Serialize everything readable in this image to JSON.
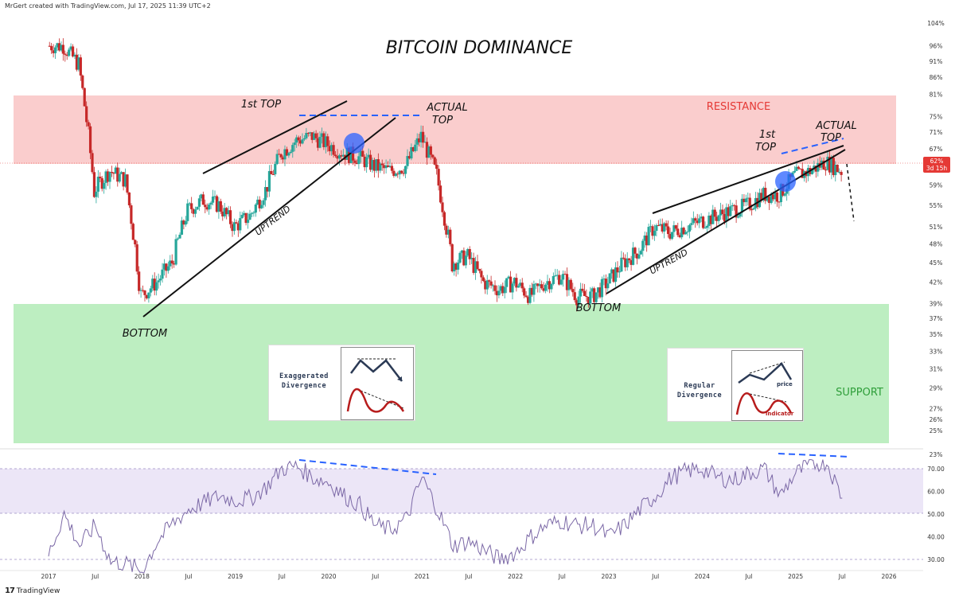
{
  "header": {
    "text": "MrGert created with TradingView.com, Jul 17, 2025 11:39 UTC+2"
  },
  "footer": {
    "logo": "17",
    "brand": "TradingView"
  },
  "colors": {
    "up": "#26a69a",
    "down": "#c62828",
    "resistance_zone": "#f9c4c4",
    "support_zone": "#b2ebb6",
    "rsi_line": "#7b68a6",
    "rsi_band": "#ece6f7",
    "marker": "#2962ff",
    "price_tag": "#e53935"
  },
  "chart_data": [
    {
      "type": "candlestick",
      "title": "BITCOIN DOMINANCE",
      "x_tick_labels": [
        "2017",
        "Jul",
        "2018",
        "Jul",
        "2019",
        "Jul",
        "2020",
        "Jul",
        "2021",
        "Jul",
        "2022",
        "Jul",
        "2023",
        "Jul",
        "2024",
        "Jul",
        "2025",
        "Jul",
        "2026"
      ],
      "y_tick_labels": [
        "104%",
        "96%",
        "91%",
        "86%",
        "81%",
        "75%",
        "71%",
        "67%",
        "59%",
        "55%",
        "51%",
        "48%",
        "45%",
        "42%",
        "39%",
        "37%",
        "35%",
        "33%",
        "31%",
        "29%",
        "27%",
        "26%",
        "25%",
        "23%"
      ],
      "y_scale": "log",
      "last_price": {
        "value": "62%",
        "countdown": "3d 15h"
      },
      "series": [
        {
          "x": [
            "2017-01",
            "2017-03",
            "2017-05",
            "2017-07",
            "2017-09",
            "2017-11",
            "2018-01",
            "2018-03",
            "2018-05",
            "2018-07",
            "2018-09",
            "2018-11",
            "2019-01",
            "2019-03",
            "2019-05",
            "2019-07",
            "2019-09",
            "2019-11",
            "2020-01",
            "2020-03",
            "2020-05",
            "2020-07",
            "2020-09",
            "2020-11",
            "2021-01",
            "2021-03",
            "2021-05",
            "2021-07",
            "2021-09",
            "2021-11",
            "2022-01",
            "2022-03",
            "2022-05",
            "2022-07",
            "2022-09",
            "2022-11",
            "2023-01",
            "2023-03",
            "2023-05",
            "2023-07",
            "2023-09",
            "2023-11",
            "2024-01",
            "2024-03",
            "2024-05",
            "2024-07",
            "2024-09",
            "2024-11",
            "2025-01",
            "2025-03",
            "2025-05",
            "2025-07"
          ],
          "y": [
            96,
            96,
            90,
            58,
            62,
            60,
            40,
            42,
            45,
            54,
            56,
            55,
            51,
            53,
            58,
            66,
            69,
            70,
            68,
            66,
            65,
            63,
            62,
            63,
            70,
            61,
            45,
            46,
            42,
            41,
            42,
            40,
            42,
            43,
            40,
            40,
            42,
            45,
            47,
            51,
            50,
            51,
            52,
            53,
            54,
            55,
            57,
            57,
            61,
            62,
            64,
            62
          ]
        }
      ],
      "annotations": {
        "first_top_left": "1st TOP",
        "actual_top_left": [
          "ACTUAL",
          "TOP"
        ],
        "uptrend_left": "UPTREND",
        "bottom_left": "BOTTOM",
        "first_top_right": [
          "1st",
          "TOP"
        ],
        "actual_top_right": [
          "ACTUAL",
          "TOP"
        ],
        "uptrend_right": "UPTREND",
        "bottom_right": "BOTTOM",
        "resistance": "RESISTANCE",
        "support": "SUPPORT"
      },
      "cards": [
        {
          "label": [
            "Exaggerated",
            "Divergence"
          ]
        },
        {
          "label": [
            "Regular",
            "Divergence"
          ],
          "price_word": "price",
          "indicator_word": "indicator"
        }
      ]
    },
    {
      "type": "line",
      "y_tick_labels": [
        "70.00",
        "60.00",
        "50.00",
        "40.00",
        "30.00"
      ],
      "ylim": [
        30,
        74
      ],
      "x": [
        "2017-01",
        "2017-03",
        "2017-05",
        "2017-07",
        "2017-09",
        "2017-11",
        "2018-01",
        "2018-03",
        "2018-05",
        "2018-07",
        "2018-09",
        "2018-11",
        "2019-01",
        "2019-03",
        "2019-05",
        "2019-07",
        "2019-09",
        "2019-11",
        "2020-01",
        "2020-03",
        "2020-05",
        "2020-07",
        "2020-09",
        "2020-11",
        "2021-01",
        "2021-03",
        "2021-05",
        "2021-07",
        "2021-09",
        "2021-11",
        "2022-01",
        "2022-03",
        "2022-05",
        "2022-07",
        "2022-09",
        "2022-11",
        "2023-01",
        "2023-03",
        "2023-05",
        "2023-07",
        "2023-09",
        "2023-11",
        "2024-01",
        "2024-03",
        "2024-05",
        "2024-07",
        "2024-09",
        "2024-11",
        "2025-01",
        "2025-03",
        "2025-05",
        "2025-07"
      ],
      "y": [
        32,
        50,
        36,
        45,
        29,
        28,
        25,
        38,
        46,
        52,
        55,
        58,
        56,
        57,
        62,
        70,
        71,
        66,
        64,
        58,
        54,
        45,
        43,
        48,
        66,
        52,
        36,
        38,
        34,
        30,
        33,
        40,
        45,
        47,
        45,
        45,
        40,
        45,
        52,
        58,
        66,
        69,
        70,
        66,
        65,
        68,
        70,
        58,
        68,
        72,
        73,
        57
      ]
    }
  ]
}
